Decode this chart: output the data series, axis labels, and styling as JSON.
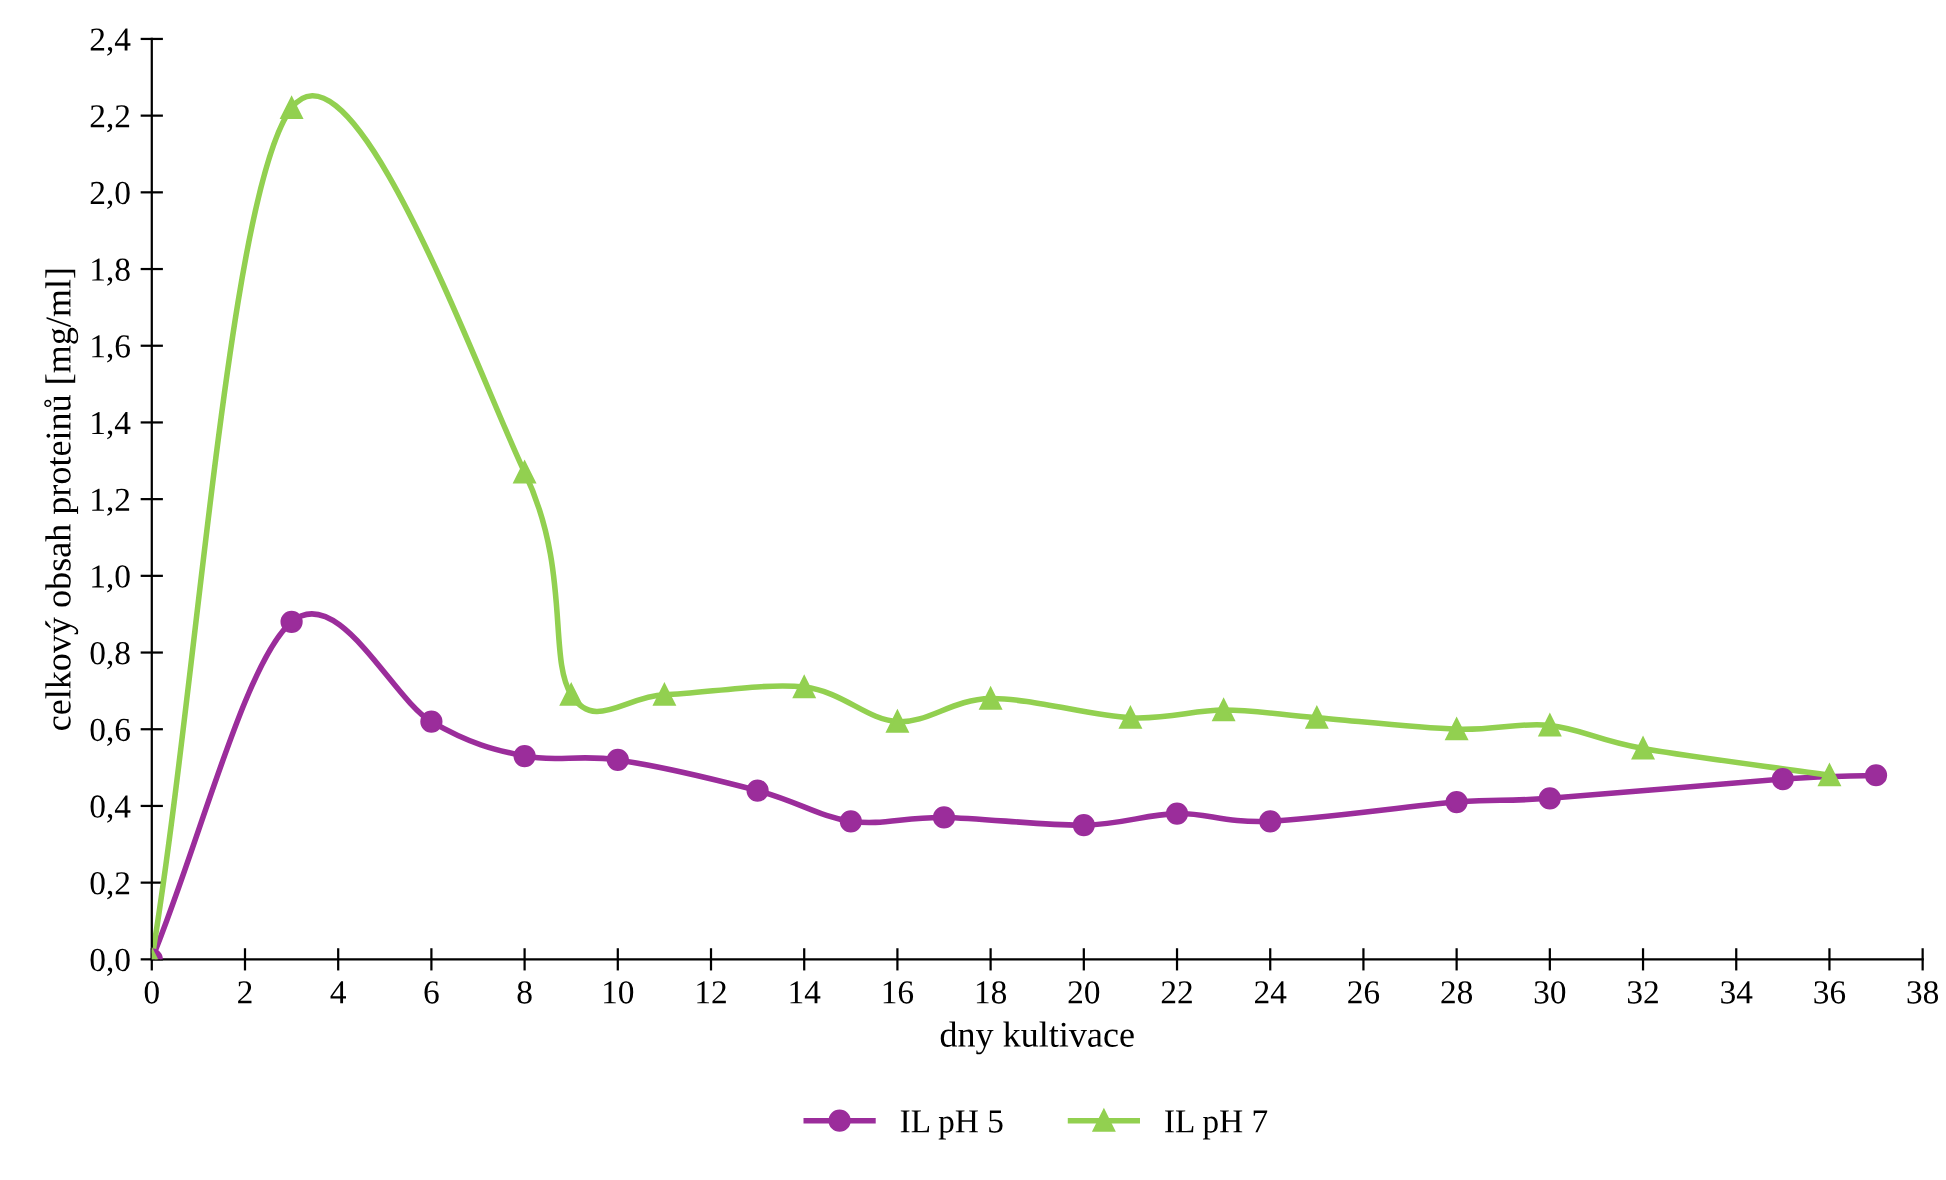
{
  "chart_data": {
    "type": "line",
    "xlabel": "dny kultivace",
    "ylabel": "celkový obsah proteinů [mg/ml]",
    "xlim": [
      0,
      38
    ],
    "xticks": [
      0,
      2,
      4,
      6,
      8,
      10,
      12,
      14,
      16,
      18,
      20,
      22,
      24,
      26,
      28,
      30,
      32,
      34,
      36,
      38
    ],
    "ylim": [
      0,
      2.4
    ],
    "yticks": [
      {
        "value": 0,
        "label": "0,0"
      },
      {
        "value": 0.2,
        "label": "0,2"
      },
      {
        "value": 0.4,
        "label": "0,4"
      },
      {
        "value": 0.6,
        "label": "0,6"
      },
      {
        "value": 0.8,
        "label": "0,8"
      },
      {
        "value": 1.0,
        "label": "1,0"
      },
      {
        "value": 1.2,
        "label": "1,2"
      },
      {
        "value": 1.4,
        "label": "1,4"
      },
      {
        "value": 1.6,
        "label": "1,6"
      },
      {
        "value": 1.8,
        "label": "1,8"
      },
      {
        "value": 2.0,
        "label": "2,0"
      },
      {
        "value": 2.2,
        "label": "2,2"
      },
      {
        "value": 2.4,
        "label": "2,4"
      }
    ],
    "grid": false,
    "legend": "bottom",
    "series": [
      {
        "name": "IL pH 5",
        "color": "#9b2d9b",
        "marker": "circle",
        "x": [
          0,
          3,
          6,
          8,
          10,
          13,
          15,
          17,
          20,
          22,
          24,
          28,
          30,
          35,
          37
        ],
        "values": [
          0,
          0.88,
          0.62,
          0.53,
          0.52,
          0.44,
          0.36,
          0.37,
          0.35,
          0.38,
          0.36,
          0.41,
          0.42,
          0.47,
          0.48
        ]
      },
      {
        "name": "IL pH 7",
        "color": "#92d050",
        "marker": "triangle",
        "x": [
          0,
          3,
          8,
          9,
          11,
          14,
          16,
          18,
          21,
          23,
          25,
          28,
          30,
          32,
          36
        ],
        "values": [
          0,
          2.22,
          1.27,
          0.69,
          0.69,
          0.71,
          0.62,
          0.68,
          0.63,
          0.65,
          0.63,
          0.6,
          0.61,
          0.55,
          0.48
        ]
      }
    ]
  }
}
